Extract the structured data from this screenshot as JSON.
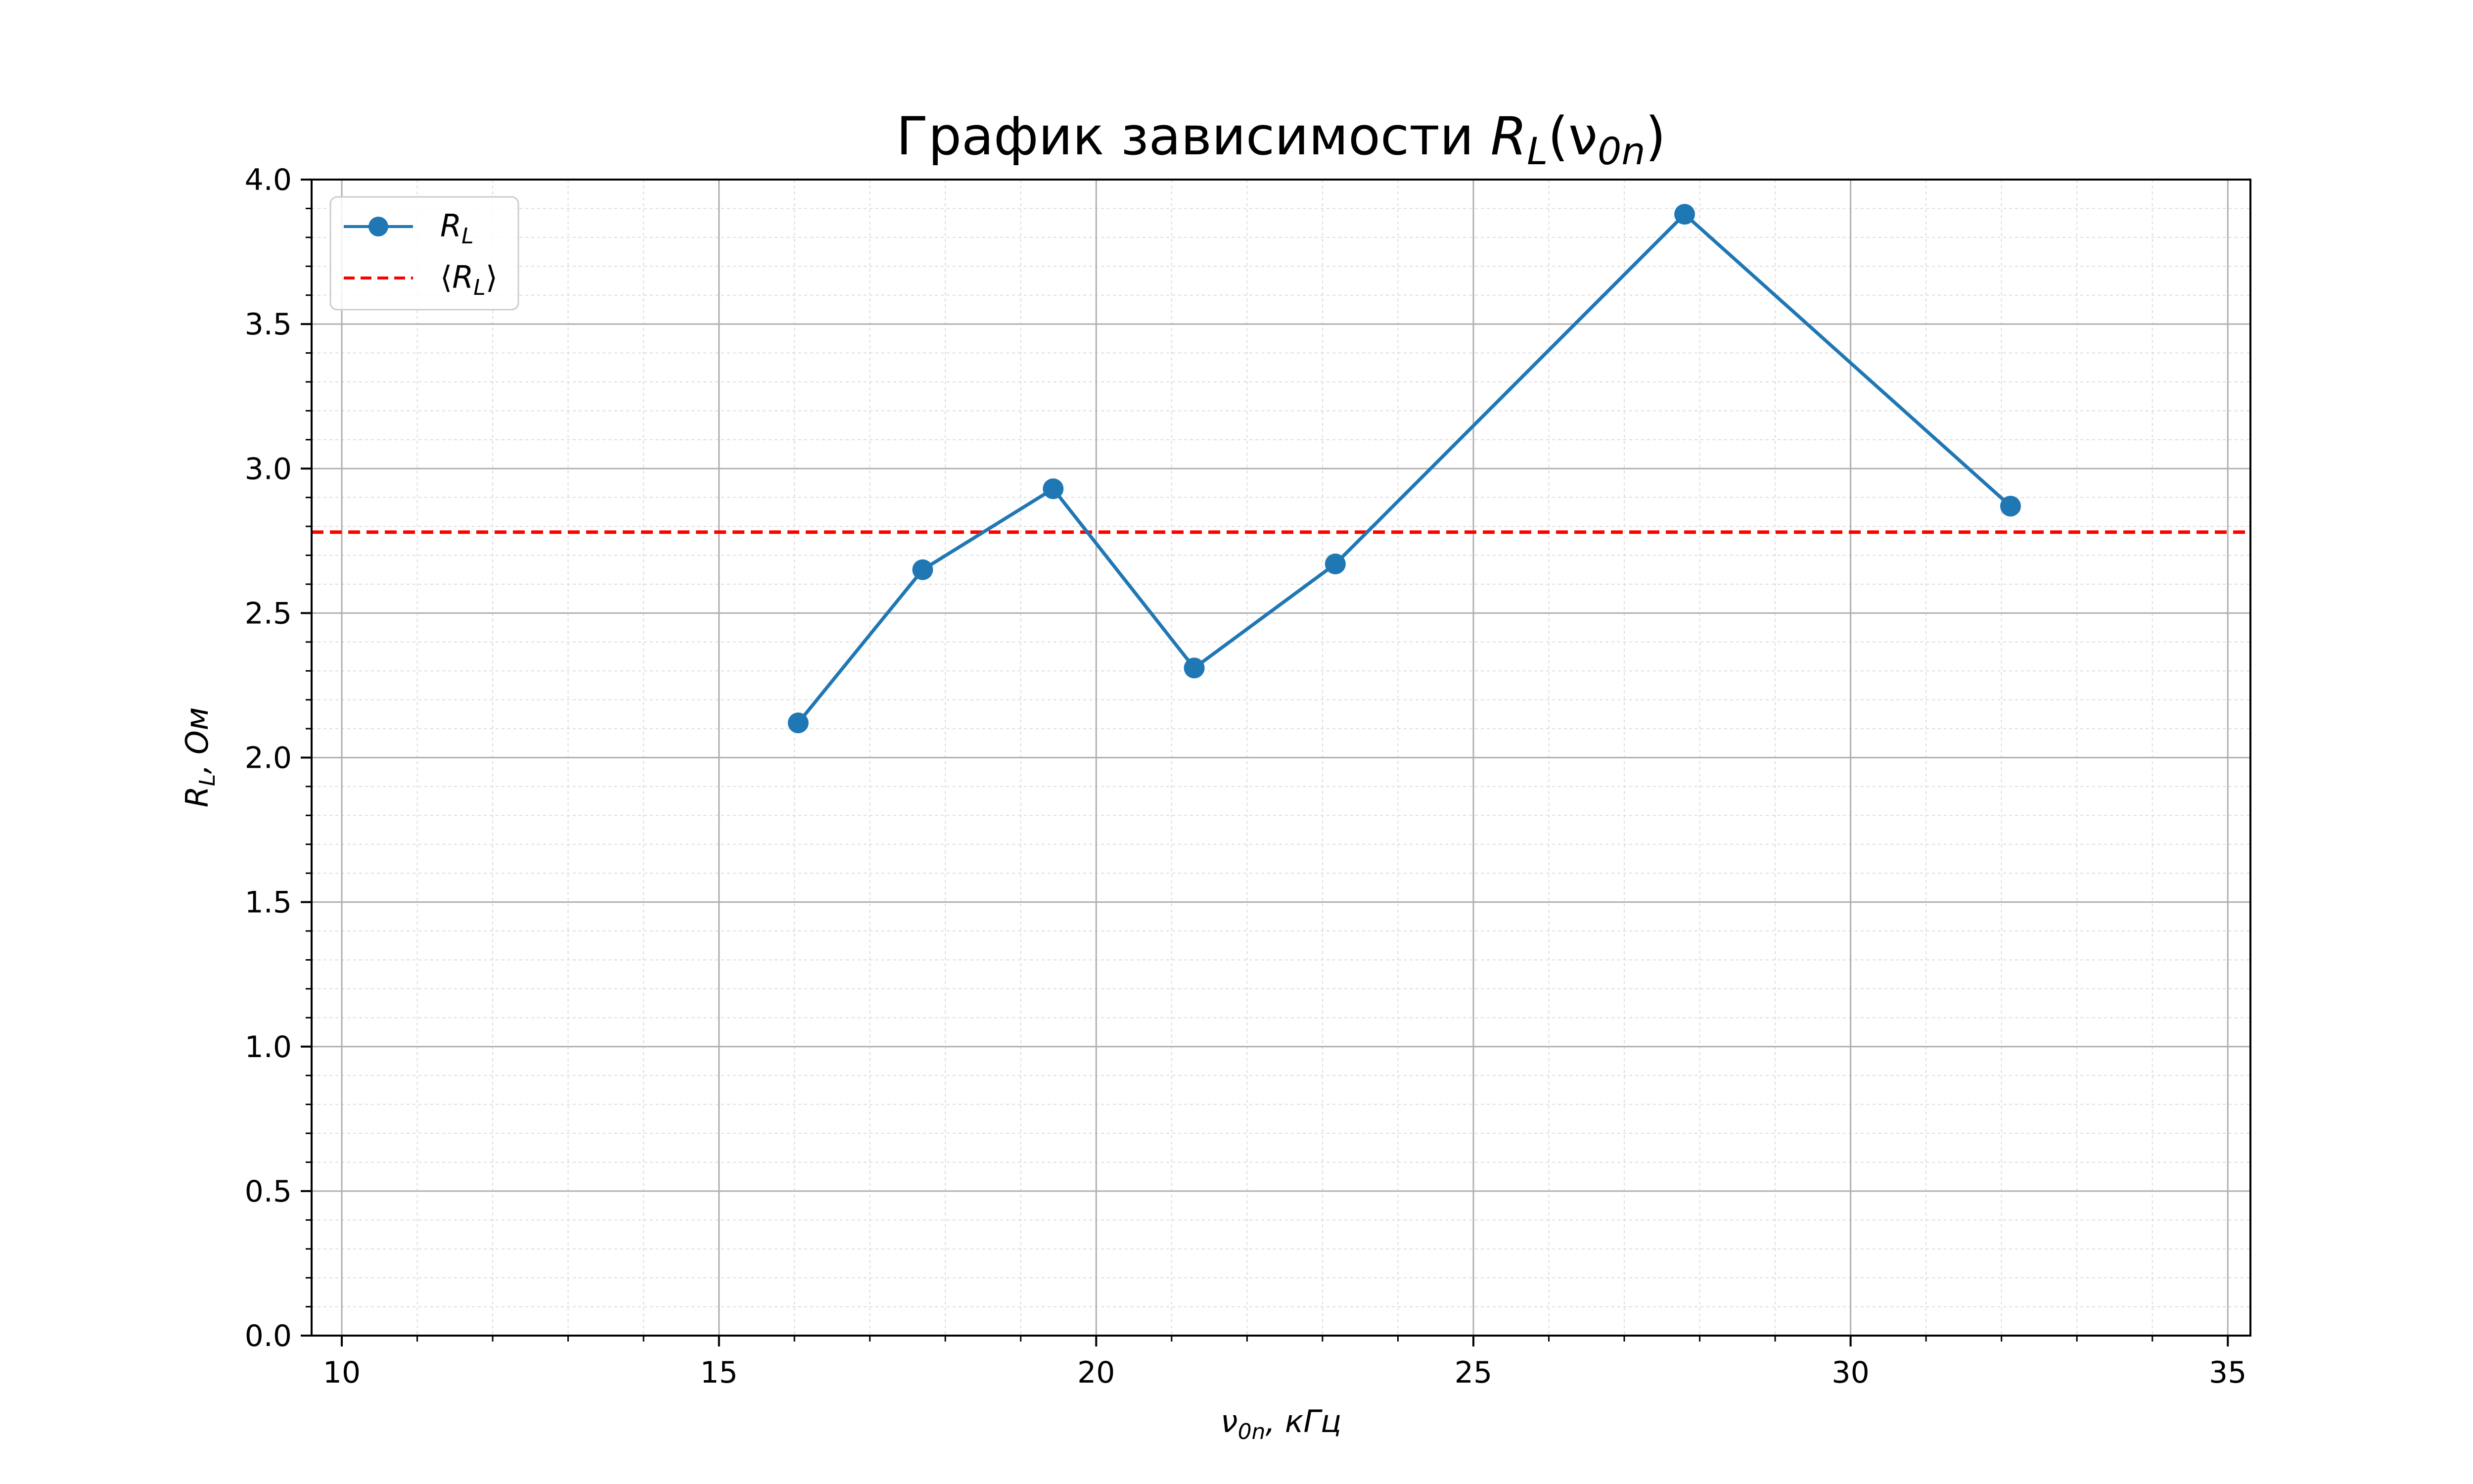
{
  "chart_data": {
    "type": "line",
    "title": "График зависимости R_L(ν0n)",
    "title_parts": {
      "prefix": "График зависимости ",
      "sym": "R",
      "sub": "L",
      "open": "(ν",
      "sub2": "0n",
      "close": ")"
    },
    "xlabel": "ν0n, кГц",
    "xlabel_parts": {
      "sym": "ν",
      "sub": "0n",
      "rest": ", кГц"
    },
    "ylabel": "R_L, Ом",
    "ylabel_parts": {
      "sym": "R",
      "sub": "L",
      "rest": ", Ом"
    },
    "xlim": [
      9.6,
      35.3
    ],
    "ylim": [
      0.0,
      4.0
    ],
    "x_ticks": [
      10,
      15,
      20,
      25,
      30,
      35
    ],
    "x_tick_labels": [
      "10",
      "15",
      "20",
      "25",
      "30",
      "35"
    ],
    "y_ticks": [
      0.0,
      0.5,
      1.0,
      1.5,
      2.0,
      2.5,
      3.0,
      3.5,
      4.0
    ],
    "y_tick_labels": [
      "0.0",
      "0.5",
      "1.0",
      "1.5",
      "2.0",
      "2.5",
      "3.0",
      "3.5",
      "4.0"
    ],
    "grid": true,
    "minor_grid": true,
    "legend_position": "top-left",
    "series": [
      {
        "name": "R_L",
        "legend_parts": {
          "sym": "R",
          "sub": "L"
        },
        "color": "#1f77b4",
        "style": "solid",
        "marker": "circle",
        "x": [
          16.05,
          17.7,
          19.43,
          21.3,
          23.17,
          27.8,
          32.12
        ],
        "y": [
          2.12,
          2.65,
          2.93,
          2.31,
          2.67,
          3.88,
          2.87
        ]
      }
    ],
    "hlines": [
      {
        "name": "⟨R_L⟩",
        "legend_parts": {
          "open": "⟨",
          "sym": "R",
          "sub": "L",
          "close": "⟩"
        },
        "color": "#ff0000",
        "style": "dashed",
        "y": 2.78
      }
    ]
  }
}
